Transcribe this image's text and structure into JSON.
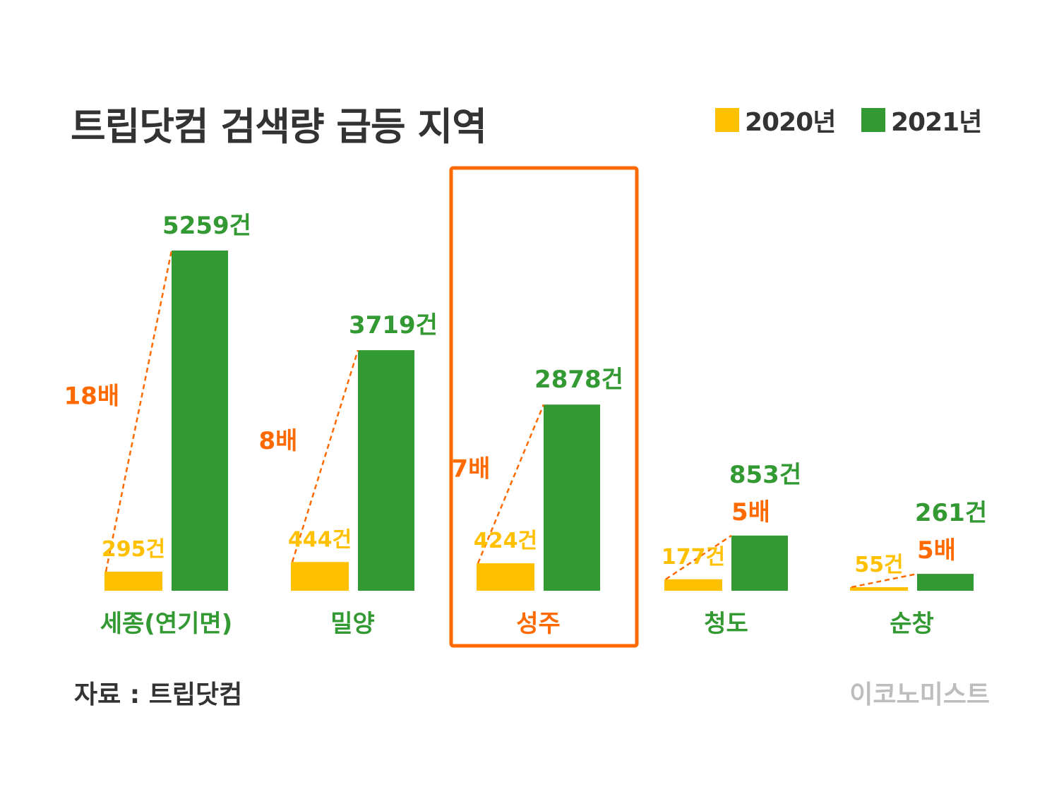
{
  "title": "트립닷컴 검색량 급등 지역",
  "legend": {
    "series_2020": "2020년",
    "series_2021": "2021년"
  },
  "source": "자료 : 트립닷컴",
  "brand": "이코노미스트",
  "colors": {
    "series_2020": "#FFC000",
    "series_2021": "#339933",
    "ratio": "#FF6A00",
    "highlight": "#FF6A00",
    "category_default": "#339933",
    "category_highlight": "#FF6A00"
  },
  "chart_data": {
    "type": "bar",
    "title": "트립닷컴 검색량 급등 지역",
    "xlabel": "",
    "ylabel": "",
    "ylim": [
      0,
      5259
    ],
    "grid": false,
    "legend_position": "top-right",
    "categories": [
      "세종(연기면)",
      "밀양",
      "성주",
      "청도",
      "순창"
    ],
    "series": [
      {
        "name": "2020년",
        "values": [
          295,
          444,
          424,
          177,
          55
        ],
        "labels": [
          "295건",
          "444건",
          "424건",
          "177건",
          "55건"
        ]
      },
      {
        "name": "2021년",
        "values": [
          5259,
          3719,
          2878,
          853,
          261
        ],
        "labels": [
          "5259건",
          "3719건",
          "2878건",
          "853건",
          "261건"
        ]
      }
    ],
    "ratios": [
      "18배",
      "8배",
      "7배",
      "5배",
      "5배"
    ],
    "highlight_index": 2
  }
}
